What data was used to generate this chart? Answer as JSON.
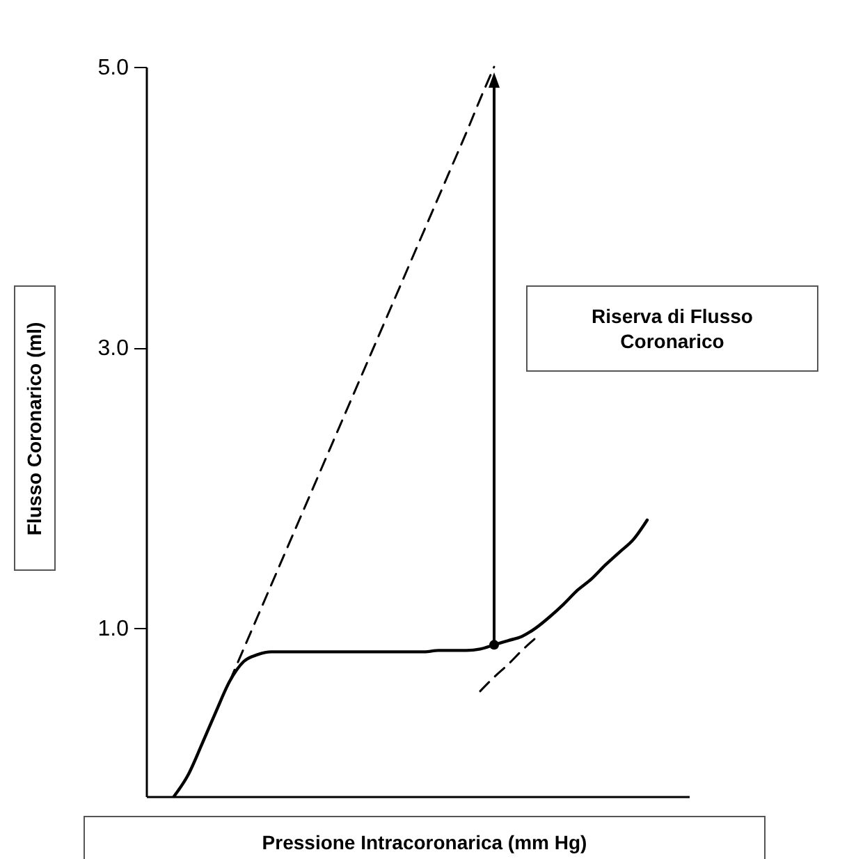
{
  "chart_data": {
    "type": "line",
    "xlabel": "Pressione Intracoronarica (mm Hg)",
    "ylabel": "Flusso Coronarico (ml)",
    "annotations": [
      "Riserva di Flusso Coronarico"
    ],
    "categories": [
      null,
      null,
      null,
      null,
      null,
      null,
      null,
      null,
      null,
      null,
      null,
      null,
      null,
      null,
      null,
      null,
      null,
      null,
      null,
      null,
      null,
      null,
      null,
      null,
      null,
      null,
      null,
      null,
      null,
      null,
      null,
      null,
      null,
      null,
      null,
      null,
      null,
      null,
      null,
      null
    ],
    "series": [
      {
        "type": "line",
        "color": "#000000",
        "line_style": "solid",
        "values": [
          null,
          null,
          -0.2,
          -0.05,
          0.17,
          0.4,
          0.62,
          0.76,
          0.81,
          0.83,
          0.83,
          0.83,
          0.83,
          0.83,
          0.83,
          0.83,
          0.83,
          0.83,
          0.83,
          0.83,
          0.83,
          0.84,
          0.84,
          0.84,
          0.85,
          0.88,
          0.91,
          0.94,
          1.0,
          1.08,
          1.17,
          1.27,
          1.35,
          1.45,
          1.54,
          1.63,
          1.77,
          null,
          null,
          null
        ]
      },
      {
        "type": "line",
        "color": "#000000",
        "line_style": "dashed",
        "values": [
          null,
          null,
          null,
          null,
          null,
          null,
          0.62,
          0.85,
          1.08,
          1.31,
          1.54,
          1.77,
          2.0,
          2.23,
          2.46,
          2.69,
          2.92,
          3.15,
          3.38,
          3.61,
          3.84,
          4.07,
          4.3,
          4.53,
          4.77,
          5.0,
          null,
          null,
          null,
          null,
          null,
          null,
          null,
          null,
          null,
          null,
          null,
          null,
          null,
          null
        ]
      },
      {
        "type": "line",
        "color": "#000000",
        "line_style": "dashed",
        "values": [
          null,
          null,
          null,
          null,
          null,
          null,
          null,
          null,
          null,
          null,
          null,
          null,
          null,
          null,
          null,
          null,
          null,
          null,
          null,
          null,
          null,
          null,
          null,
          null,
          0.55,
          0.65,
          0.74,
          0.84,
          0.93,
          null,
          null,
          null,
          null,
          null,
          null,
          null,
          null,
          null,
          null,
          null
        ]
      }
    ],
    "ylim": [
      -0.2,
      5.0
    ],
    "yticks": [
      {
        "value": 1,
        "label": "1.0"
      },
      {
        "value": 3,
        "label": "3.0"
      },
      {
        "value": 5,
        "label": "5.0"
      }
    ],
    "tick_labels": "y",
    "grid": false
  }
}
